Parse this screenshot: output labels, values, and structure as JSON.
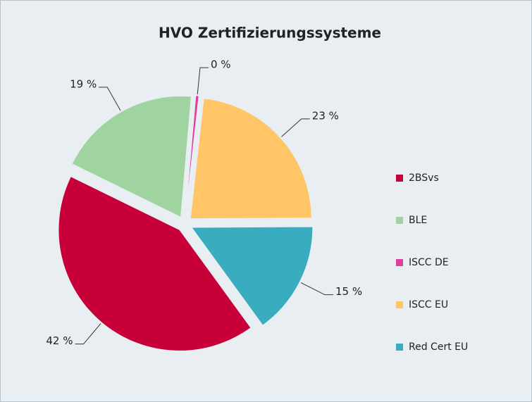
{
  "chart_data": {
    "type": "pie",
    "title": "HVO Zertifizierungssysteme",
    "categories": [
      "2BSvs",
      "BLE",
      "ISCC DE",
      "ISCC EU",
      "Red Cert EU"
    ],
    "values": [
      42,
      19,
      0.4,
      23,
      15
    ],
    "value_labels": [
      "42 %",
      "19 %",
      "0 %",
      "23 %",
      "15 %"
    ],
    "colors": [
      "#c8003a",
      "#9fd4a0",
      "#e0409a",
      "#ffc566",
      "#3aacbf"
    ],
    "legend": "right"
  }
}
